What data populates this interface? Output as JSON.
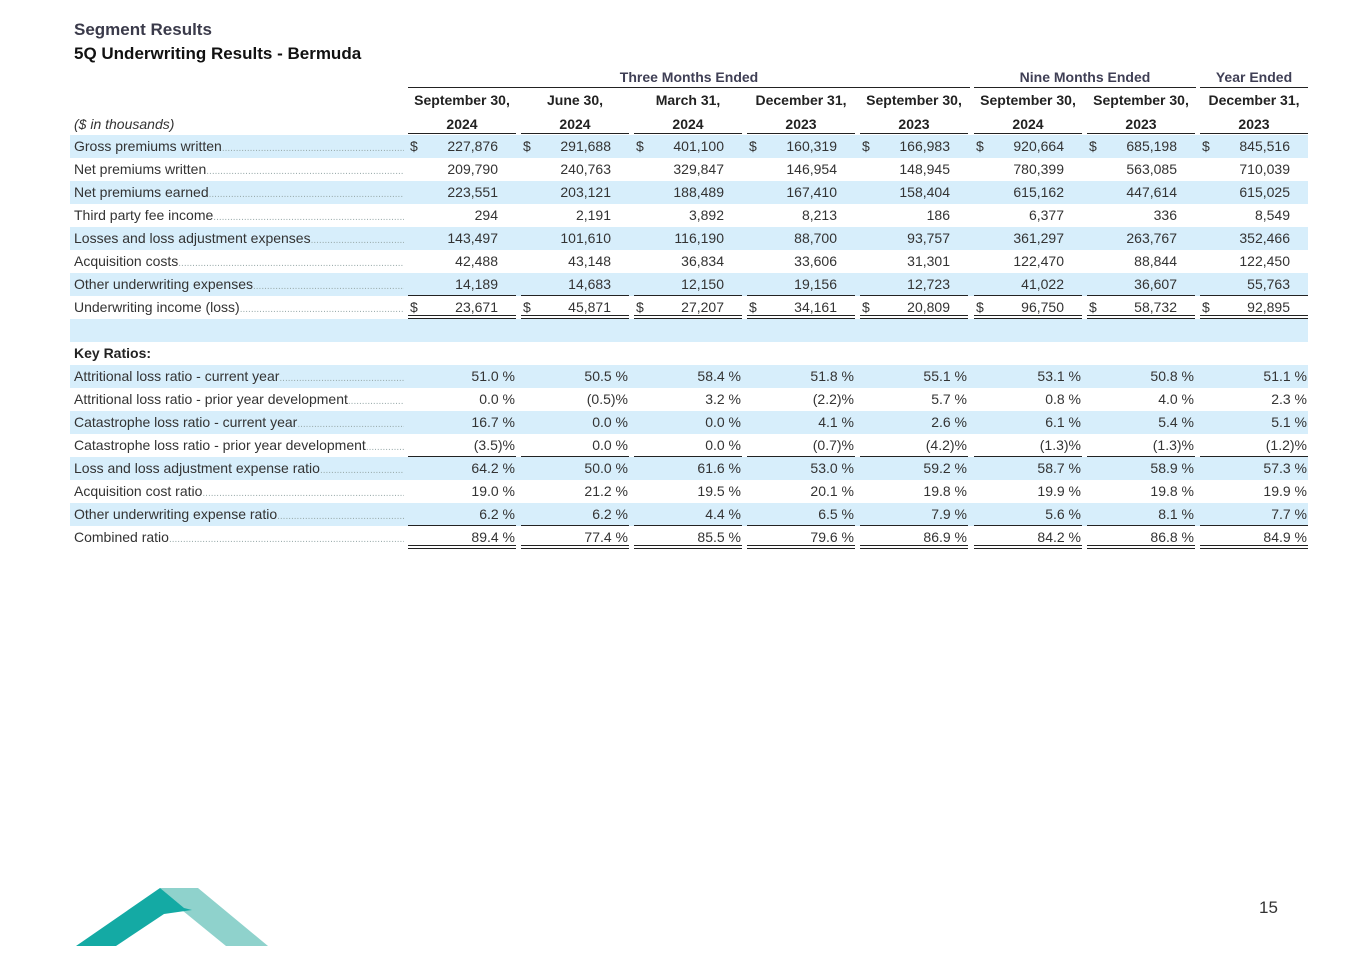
{
  "header": {
    "section": "Segment Results",
    "title": "5Q Underwriting Results - Bermuda",
    "units": "($ in thousands)"
  },
  "groups": {
    "three": "Three Months Ended",
    "nine": "Nine Months Ended",
    "year": "Year Ended"
  },
  "columns": [
    {
      "line1": "September 30,",
      "line2": "2024"
    },
    {
      "line1": "June 30,",
      "line2": "2024"
    },
    {
      "line1": "March 31,",
      "line2": "2024"
    },
    {
      "line1": "December 31,",
      "line2": "2023"
    },
    {
      "line1": "September 30,",
      "line2": "2023"
    },
    {
      "line1": "September 30,",
      "line2": "2024"
    },
    {
      "line1": "September 30,",
      "line2": "2023"
    },
    {
      "line1": "December 31,",
      "line2": "2023"
    }
  ],
  "rows": [
    {
      "label": "Gross premiums written",
      "dollar": "$",
      "values": [
        "227,876",
        "291,688",
        "401,100",
        "160,319",
        "166,983",
        "920,664",
        "685,198",
        "845,516"
      ]
    },
    {
      "label": "Net premiums written",
      "values": [
        "209,790",
        "240,763",
        "329,847",
        "146,954",
        "148,945",
        "780,399",
        "563,085",
        "710,039"
      ]
    },
    {
      "label": "Net premiums earned",
      "values": [
        "223,551",
        "203,121",
        "188,489",
        "167,410",
        "158,404",
        "615,162",
        "447,614",
        "615,025"
      ]
    },
    {
      "label": "Third party fee income",
      "values": [
        "294",
        "2,191",
        "3,892",
        "8,213",
        "186",
        "6,377",
        "336",
        "8,549"
      ]
    },
    {
      "label": "Losses and loss adjustment expenses",
      "values": [
        "143,497",
        "101,610",
        "116,190",
        "88,700",
        "93,757",
        "361,297",
        "263,767",
        "352,466"
      ]
    },
    {
      "label": "Acquisition costs",
      "values": [
        "42,488",
        "43,148",
        "36,834",
        "33,606",
        "31,301",
        "122,470",
        "88,844",
        "122,450"
      ]
    },
    {
      "label": "Other underwriting expenses",
      "values": [
        "14,189",
        "14,683",
        "12,150",
        "19,156",
        "12,723",
        "41,022",
        "36,607",
        "55,763"
      ]
    },
    {
      "label": "Underwriting income (loss)",
      "dollar": "$",
      "values": [
        "23,671",
        "45,871",
        "27,207",
        "34,161",
        "20,809",
        "96,750",
        "58,732",
        "92,895"
      ]
    }
  ],
  "ratios_title": "Key Ratios:",
  "ratios": [
    {
      "label": "Attritional loss ratio - current year",
      "values": [
        "51.0 %",
        "50.5 %",
        "58.4 %",
        "51.8 %",
        "55.1 %",
        "53.1 %",
        "50.8 %",
        "51.1 %"
      ]
    },
    {
      "label": "Attritional loss ratio - prior year development",
      "values": [
        "0.0 %",
        "(0.5)%",
        "3.2 %",
        "(2.2)%",
        "5.7 %",
        "0.8 %",
        "4.0 %",
        "2.3 %"
      ]
    },
    {
      "label": "Catastrophe loss ratio - current year",
      "values": [
        "16.7 %",
        "0.0 %",
        "0.0 %",
        "4.1 %",
        "2.6 %",
        "6.1 %",
        "5.4 %",
        "5.1 %"
      ]
    },
    {
      "label": "Catastrophe loss ratio - prior year development",
      "values": [
        "(3.5)%",
        "0.0 %",
        "0.0 %",
        "(0.7)%",
        "(4.2)%",
        "(1.3)%",
        "(1.3)%",
        "(1.2)%"
      ]
    },
    {
      "label": "Loss and loss adjustment expense ratio",
      "values": [
        "64.2 %",
        "50.0 %",
        "61.6 %",
        "53.0 %",
        "59.2 %",
        "58.7 %",
        "58.9 %",
        "57.3 %"
      ]
    },
    {
      "label": "Acquisition cost ratio",
      "values": [
        "19.0 %",
        "21.2 %",
        "19.5 %",
        "20.1 %",
        "19.8 %",
        "19.9 %",
        "19.8 %",
        "19.9 %"
      ]
    },
    {
      "label": "Other underwriting expense ratio",
      "values": [
        "6.2 %",
        "6.2 %",
        "4.4 %",
        "6.5 %",
        "7.9 %",
        "5.6 %",
        "8.1 %",
        "7.7 %"
      ]
    },
    {
      "label": "Combined ratio",
      "values": [
        "89.4 %",
        "77.4 %",
        "85.5 %",
        "79.6 %",
        "86.9 %",
        "84.2 %",
        "86.8 %",
        "84.9 %"
      ]
    }
  ],
  "page_number": "15",
  "colors": {
    "shade": "#d7eefb",
    "logo_dark": "#14aaa4",
    "logo_light": "#8fd2cc"
  }
}
